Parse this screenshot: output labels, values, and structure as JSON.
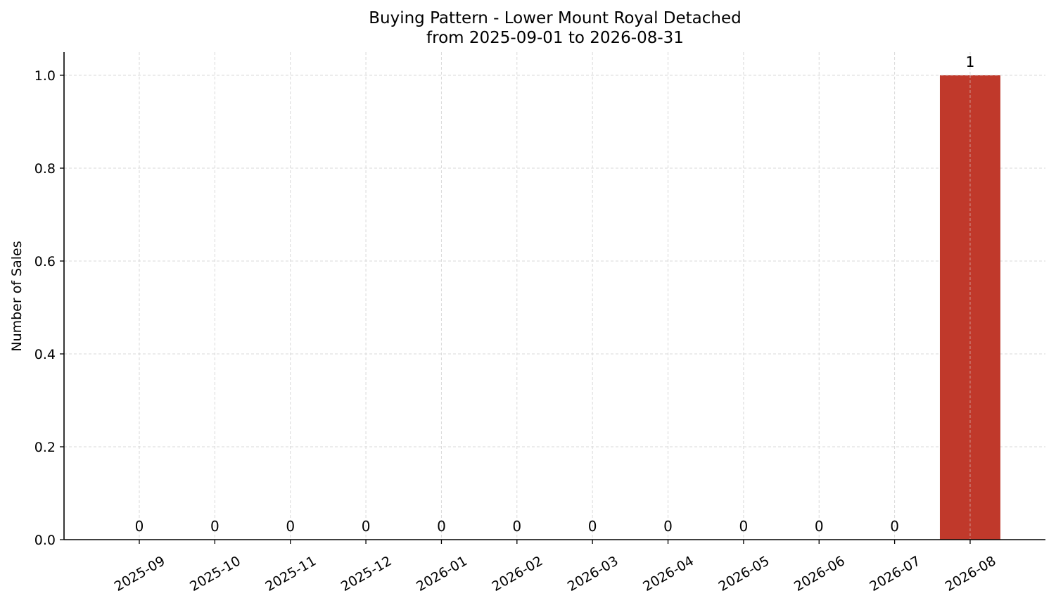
{
  "chart_data": {
    "type": "bar",
    "title": "Buying Pattern - Lower Mount Royal Detached",
    "subtitle": "from 2025-09-01 to 2026-08-31",
    "xlabel": "",
    "ylabel": "Number of Sales",
    "categories": [
      "2025-09",
      "2025-10",
      "2025-11",
      "2025-12",
      "2026-01",
      "2026-02",
      "2026-03",
      "2026-04",
      "2026-05",
      "2026-06",
      "2026-07",
      "2026-08"
    ],
    "values": [
      0,
      0,
      0,
      0,
      0,
      0,
      0,
      0,
      0,
      0,
      0,
      1
    ],
    "data_labels": [
      "0",
      "0",
      "0",
      "0",
      "0",
      "0",
      "0",
      "0",
      "0",
      "0",
      "0",
      "1"
    ],
    "ylim": [
      0,
      1.05
    ],
    "yticks": [
      "0.0",
      "0.2",
      "0.4",
      "0.6",
      "0.8",
      "1.0"
    ],
    "grid": true,
    "bar_color": "#c0392b"
  }
}
